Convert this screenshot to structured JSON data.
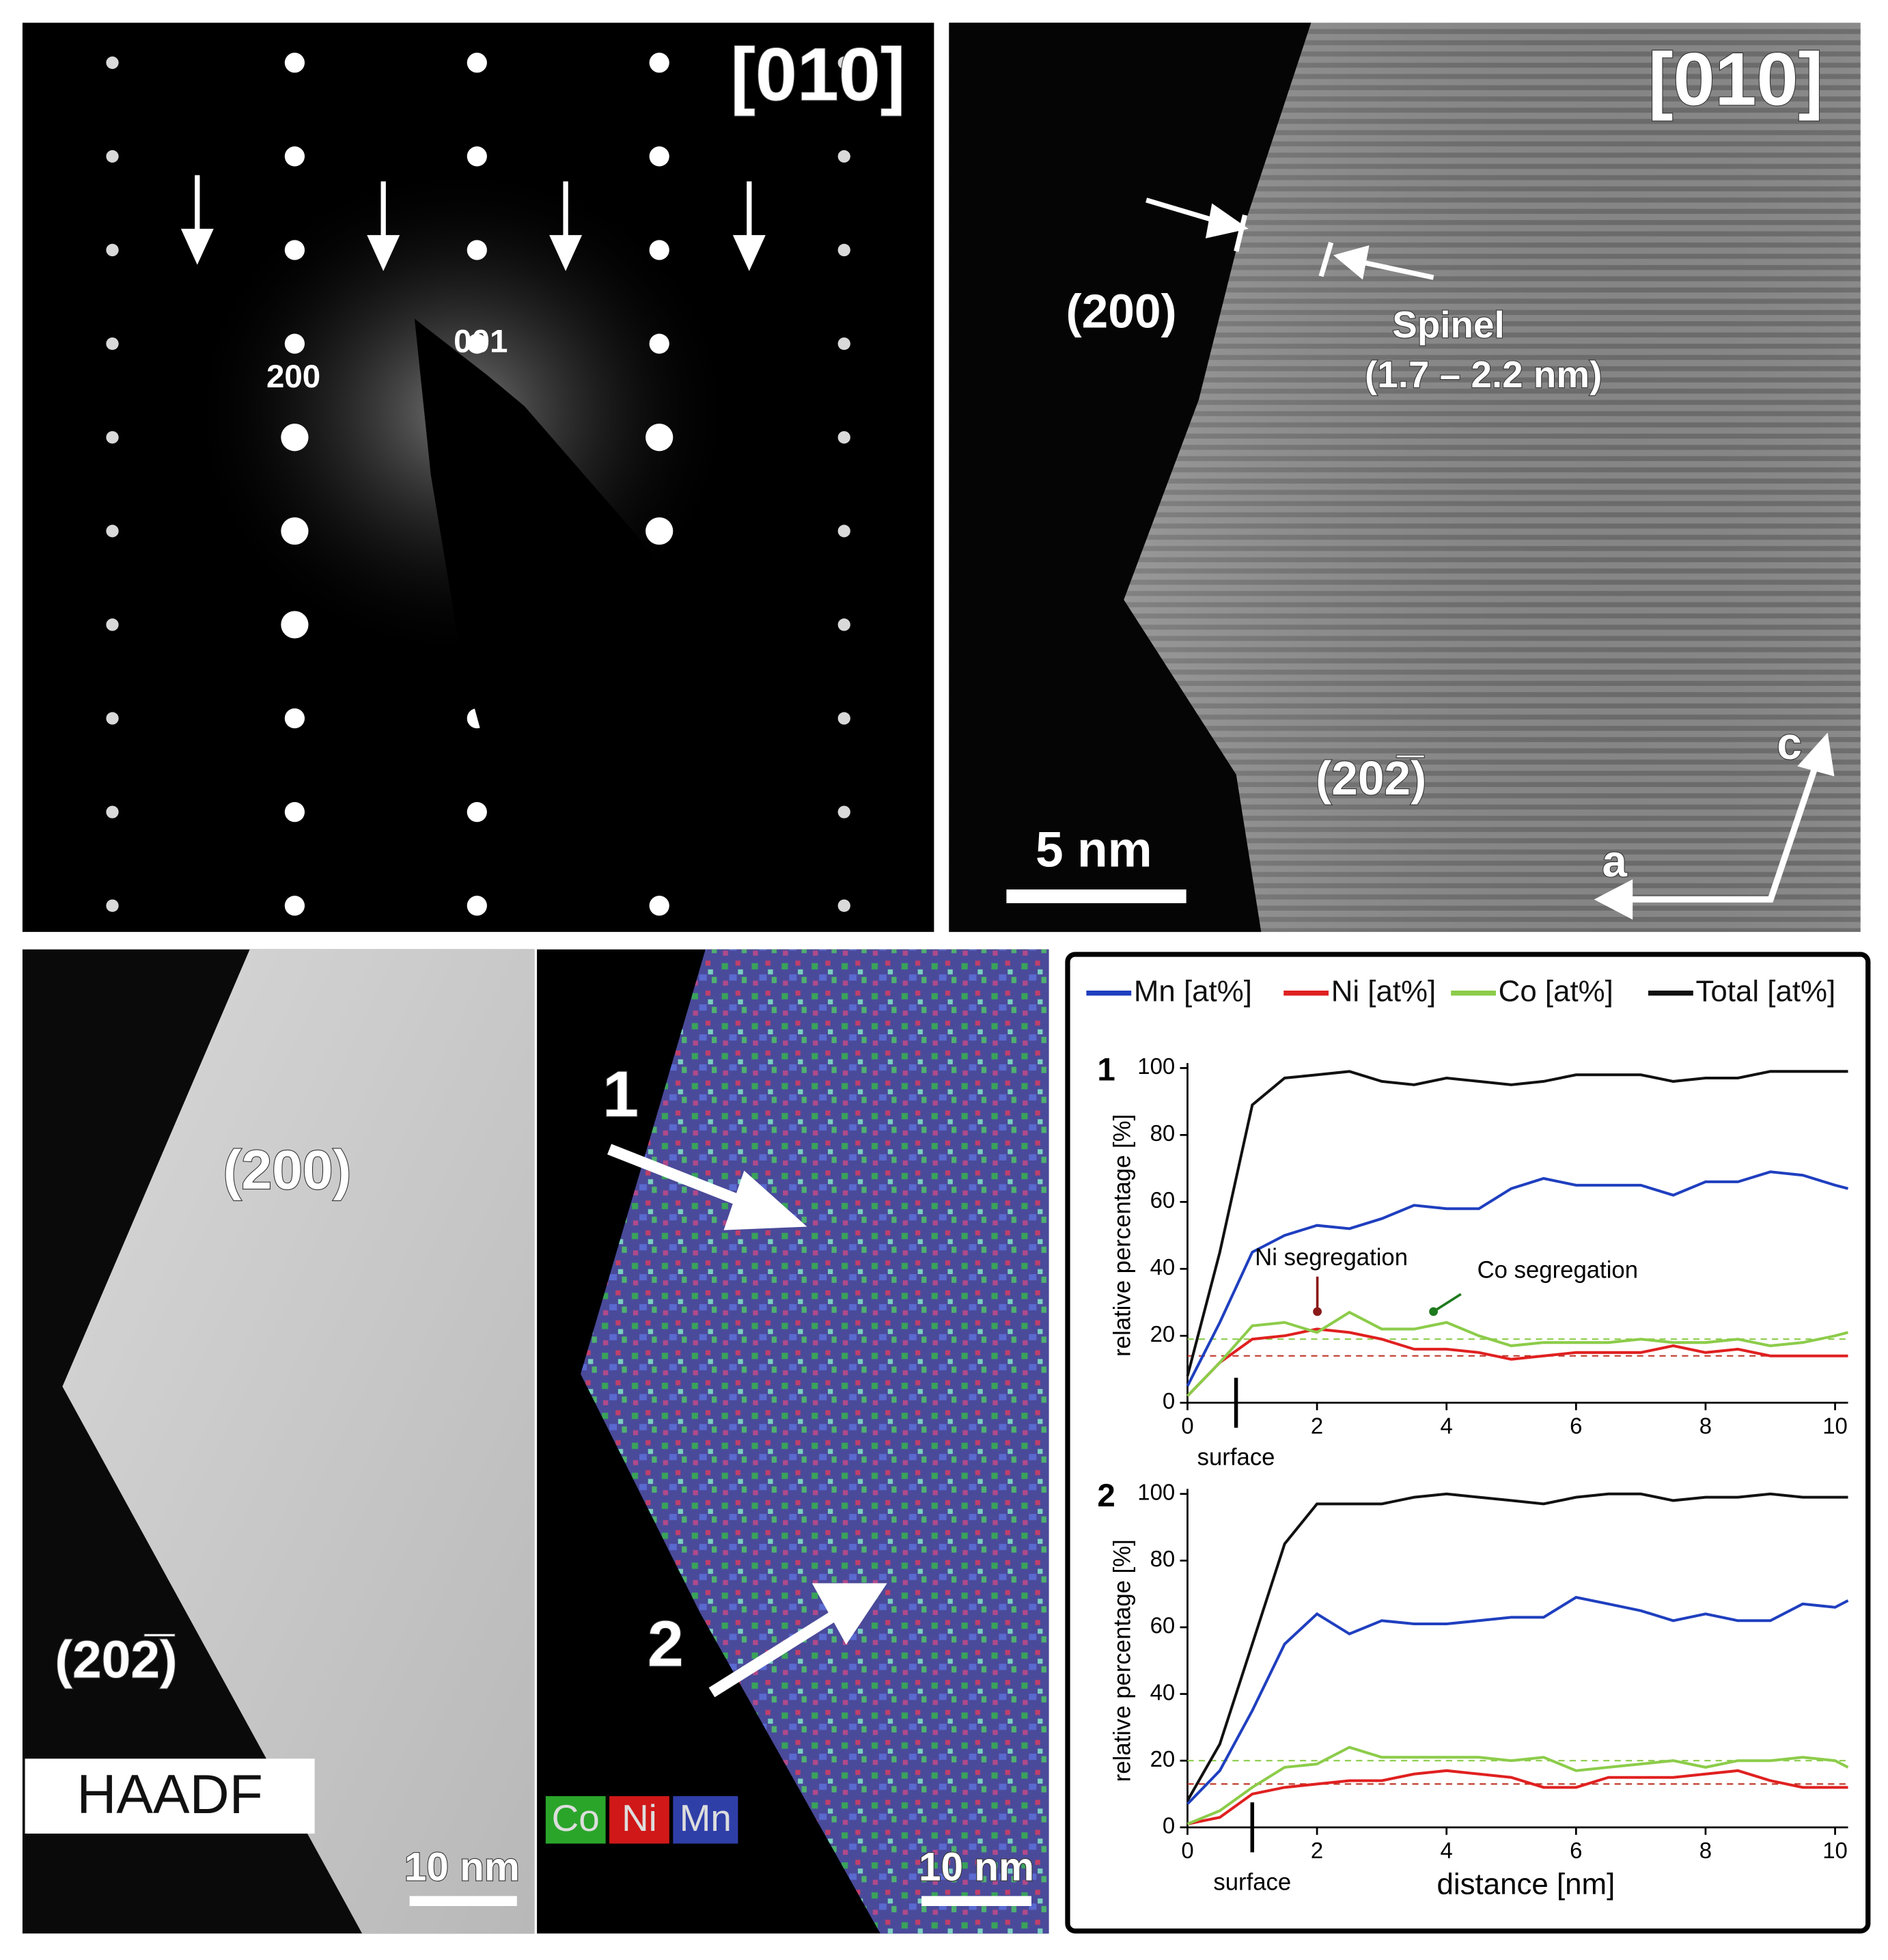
{
  "panels": {
    "diffraction": {
      "zone_axis": "[010]",
      "spots": [
        "200",
        "001"
      ]
    },
    "hrtem": {
      "zone_axis": "[010]",
      "facet_top": "(200)",
      "spinel": "Spinel",
      "spinel_thickness": "(1.7 – 2.2 nm)",
      "facet_bottom": "(202̅)",
      "axis_c": "c",
      "axis_a": "a",
      "scale_bar": "5 nm"
    },
    "haadf": {
      "facet_top": "(200)",
      "facet_bottom": "(202̅)",
      "label": "HAADF",
      "scale_bar": "10 nm"
    },
    "eds_map": {
      "profile_1": "1",
      "profile_2": "2",
      "elements": [
        "Co",
        "Ni",
        "Mn"
      ],
      "scale_bar": "10 nm"
    }
  },
  "chart_data": [
    {
      "type": "line",
      "label": "1",
      "ylabel": "relative percentage [%]",
      "x": [
        0,
        0.5,
        1,
        1.5,
        2,
        2.5,
        3,
        3.5,
        4,
        4.5,
        5,
        5.5,
        6,
        6.5,
        7,
        7.5,
        8,
        8.5,
        9,
        9.5,
        10,
        10.2
      ],
      "series": [
        {
          "name": "Mn [at%]",
          "color": "#1f3fbf",
          "values": [
            5,
            24,
            45,
            50,
            53,
            52,
            55,
            59,
            58,
            58,
            64,
            67,
            65,
            65,
            65,
            62,
            66,
            66,
            69,
            68,
            65,
            64
          ]
        },
        {
          "name": "Ni [at%]",
          "color": "#e02020",
          "values": [
            2,
            12,
            19,
            20,
            22,
            21,
            19,
            16,
            16,
            15,
            13,
            14,
            15,
            15,
            15,
            17,
            15,
            16,
            14,
            14,
            14,
            14
          ]
        },
        {
          "name": "Co [at%]",
          "color": "#8ccc4a",
          "values": [
            2,
            12,
            23,
            24,
            21,
            27,
            22,
            22,
            24,
            20,
            17,
            18,
            18,
            18,
            19,
            18,
            18,
            19,
            17,
            18,
            20,
            21
          ]
        },
        {
          "name": "Total [at%]",
          "color": "#111111",
          "values": [
            8,
            45,
            89,
            97,
            98,
            99,
            96,
            95,
            97,
            96,
            95,
            96,
            98,
            98,
            98,
            96,
            97,
            97,
            99,
            99,
            99,
            99
          ]
        }
      ],
      "reference_lines": [
        {
          "color": "#8ccc4a",
          "value": 19
        },
        {
          "color": "#c0392b",
          "value": 14
        }
      ],
      "surface": {
        "label": "surface",
        "x": 0.75
      },
      "annotations": [
        "Ni segregation",
        "Co segregation"
      ],
      "xlim": [
        0,
        10.2
      ],
      "ylim": [
        0,
        100
      ],
      "xticks": [
        0,
        2,
        4,
        6,
        8,
        10
      ],
      "yticks": [
        0,
        20,
        40,
        60,
        80,
        100
      ]
    },
    {
      "type": "line",
      "label": "2",
      "ylabel": "relative percentage [%]",
      "xlabel": "distance [nm]",
      "x": [
        0,
        0.5,
        1,
        1.5,
        2,
        2.5,
        3,
        3.5,
        4,
        4.5,
        5,
        5.5,
        6,
        6.5,
        7,
        7.5,
        8,
        8.5,
        9,
        9.5,
        10,
        10.2
      ],
      "series": [
        {
          "color": "#1f3fbf",
          "values": [
            7,
            17,
            35,
            55,
            64,
            58,
            62,
            61,
            61,
            62,
            63,
            63,
            69,
            67,
            65,
            62,
            64,
            62,
            62,
            67,
            66,
            68
          ]
        },
        {
          "color": "#e02020",
          "values": [
            1,
            3,
            10,
            12,
            13,
            14,
            14,
            16,
            17,
            16,
            15,
            12,
            12,
            15,
            15,
            15,
            16,
            17,
            14,
            12,
            12,
            12
          ]
        },
        {
          "color": "#8ccc4a",
          "values": [
            1,
            5,
            12,
            18,
            19,
            24,
            21,
            21,
            21,
            21,
            20,
            21,
            17,
            18,
            19,
            20,
            18,
            20,
            20,
            21,
            20,
            18
          ]
        },
        {
          "color": "#111111",
          "values": [
            8,
            25,
            55,
            85,
            97,
            97,
            97,
            99,
            100,
            99,
            98,
            97,
            99,
            100,
            100,
            98,
            99,
            99,
            100,
            99,
            99,
            99
          ]
        }
      ],
      "reference_lines": [
        {
          "color": "#8ccc4a",
          "value": 20
        },
        {
          "color": "#c0392b",
          "value": 13
        }
      ],
      "surface": {
        "label": "surface",
        "x": 1
      },
      "xlim": [
        0,
        10.2
      ],
      "ylim": [
        0,
        100
      ],
      "xticks": [
        0,
        2,
        4,
        6,
        8,
        10
      ],
      "yticks": [
        0,
        20,
        40,
        60,
        80,
        100
      ]
    }
  ]
}
